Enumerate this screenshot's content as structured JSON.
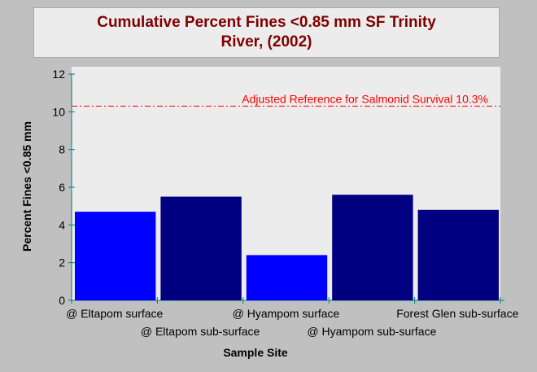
{
  "chart_data": {
    "type": "bar",
    "title_line1": "Cumulative Percent Fines <0.85 mm SF Trinity",
    "title_line2": "River,  (2002)",
    "xlabel": "Sample Site",
    "ylabel": "Percent Fines <0.85 mm",
    "ylim": [
      0,
      12
    ],
    "yticks": [
      0,
      2,
      4,
      6,
      8,
      10,
      12
    ],
    "categories": [
      "@ Eltapom surface",
      "@ Eltapom sub-surface",
      "@ Hyampom surface",
      "@ Hyampom sub-surface",
      "Forest Glen sub-surface"
    ],
    "values": [
      4.7,
      5.5,
      2.4,
      5.6,
      4.8
    ],
    "bar_colors": [
      "#0000ff",
      "#000080",
      "#0000ff",
      "#000080",
      "#000080"
    ],
    "reference_line": {
      "value": 10.3,
      "label": "Adjusted Reference for Salmonid Survival 10.3%",
      "color": "#ff0000"
    },
    "grid": false,
    "legend": "none",
    "plot_background": "#ececec"
  }
}
